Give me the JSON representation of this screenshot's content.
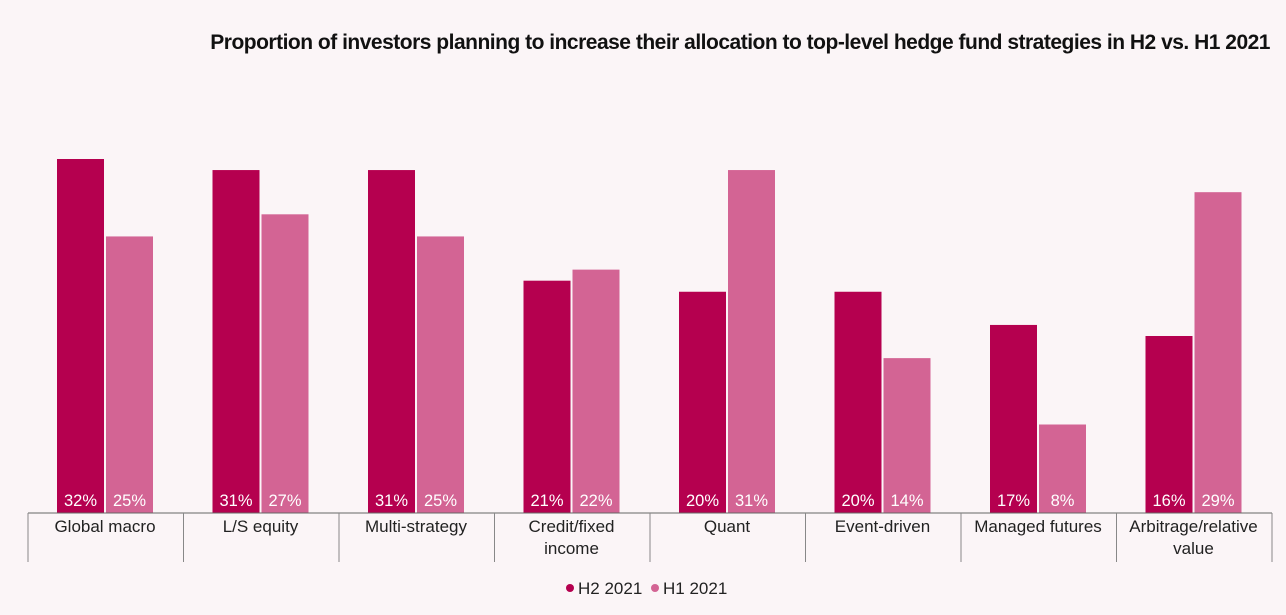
{
  "chart_data": {
    "type": "bar",
    "title": "Proportion of investors planning to increase their allocation to top-level hedge fund strategies in H2 vs. H1 2021",
    "categories": [
      [
        "Global macro"
      ],
      [
        "L/S equity"
      ],
      [
        "Multi-strategy"
      ],
      [
        "Credit/fixed",
        "income"
      ],
      [
        "Quant"
      ],
      [
        "Event-driven"
      ],
      [
        "Managed futures"
      ],
      [
        "Arbitrage/relative",
        "value"
      ]
    ],
    "series": [
      {
        "name": "H2 2021",
        "color": "#b5004f",
        "values": [
          32,
          31,
          31,
          21,
          20,
          20,
          17,
          16
        ],
        "labels": [
          "32%",
          "31%",
          "31%",
          "21%",
          "20%",
          "20%",
          "17%",
          "16%"
        ]
      },
      {
        "name": "H1 2021",
        "color": "#d36494",
        "values": [
          25,
          27,
          25,
          22,
          31,
          14,
          8,
          29
        ],
        "labels": [
          "25%",
          "27%",
          "25%",
          "22%",
          "31%",
          "14%",
          "8%",
          "29%"
        ]
      }
    ],
    "unit": "%",
    "ylim": [
      0,
      32
    ],
    "grid": false,
    "legend_position": "bottom-center"
  }
}
